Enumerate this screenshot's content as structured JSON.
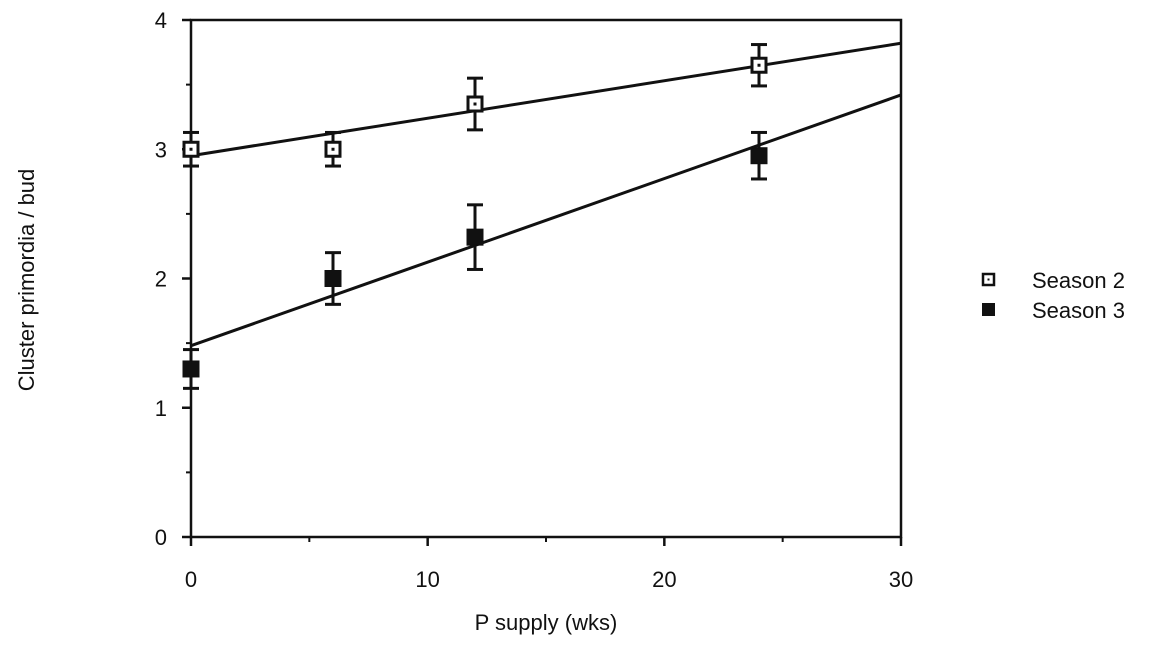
{
  "chart_data": {
    "type": "scatter",
    "xlabel": "P supply (wks)",
    "ylabel": "Cluster primordia / bud",
    "xlim": [
      0,
      30
    ],
    "ylim": [
      0,
      4
    ],
    "x_ticks": [
      0,
      10,
      20,
      30
    ],
    "x_minor_ticks": [
      5,
      15,
      25
    ],
    "y_ticks": [
      0,
      1,
      2,
      3,
      4
    ],
    "grid": false,
    "legend_position": "right",
    "series": [
      {
        "name": "Season 2",
        "marker": "open-square",
        "points": [
          {
            "x": 0,
            "y": 3.0,
            "err": 0.13
          },
          {
            "x": 6,
            "y": 3.0,
            "err": 0.13
          },
          {
            "x": 12,
            "y": 3.35,
            "err": 0.2
          },
          {
            "x": 24,
            "y": 3.65,
            "err": 0.16
          }
        ],
        "fit_line": {
          "x": [
            0,
            30
          ],
          "y": [
            2.95,
            3.82
          ]
        }
      },
      {
        "name": "Season 3",
        "marker": "filled-square",
        "points": [
          {
            "x": 0,
            "y": 1.3,
            "err": 0.15
          },
          {
            "x": 6,
            "y": 2.0,
            "err": 0.2
          },
          {
            "x": 12,
            "y": 2.32,
            "err": 0.25
          },
          {
            "x": 24,
            "y": 2.95,
            "err": 0.18
          }
        ],
        "fit_line": {
          "x": [
            0,
            30
          ],
          "y": [
            1.48,
            3.42
          ]
        }
      }
    ]
  }
}
